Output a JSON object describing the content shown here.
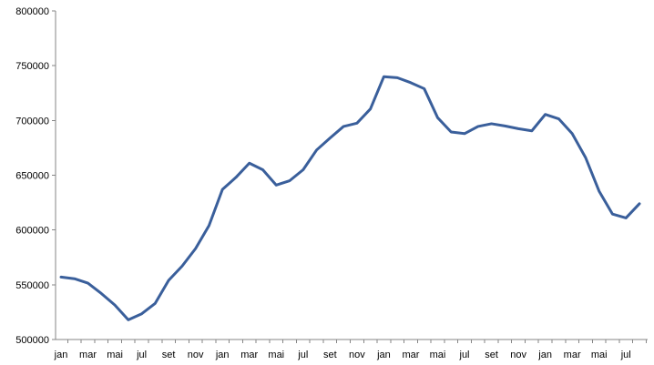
{
  "chart_data": {
    "type": "line",
    "title": "",
    "xlabel": "",
    "ylabel": "",
    "ylim": [
      500000,
      800000
    ],
    "y_ticks": [
      "500000",
      "550000",
      "600000",
      "650000",
      "700000",
      "750000",
      "800000"
    ],
    "grid": false,
    "legend": "none",
    "x_tick_labels": [
      "jan",
      "mar",
      "mai",
      "jul",
      "set",
      "nov",
      "jan",
      "mar",
      "mai",
      "jul",
      "set",
      "nov",
      "jan",
      "mar",
      "mai",
      "jul",
      "set",
      "nov",
      "jan",
      "mar",
      "mai",
      "jul"
    ],
    "series": [
      {
        "color": "#3a5f9b",
        "values": [
          557000,
          555500,
          551500,
          542000,
          531500,
          518000,
          523500,
          533000,
          554000,
          567000,
          583000,
          604000,
          637000,
          648000,
          661000,
          655000,
          641000,
          645000,
          655000,
          673000,
          684000,
          694500,
          697500,
          710500,
          740000,
          739000,
          734500,
          729000,
          702500,
          689500,
          688000,
          694500,
          697000,
          695000,
          692500,
          690500,
          705500,
          701500,
          688000,
          666000,
          635500,
          614500,
          611000,
          624000
        ]
      }
    ]
  }
}
